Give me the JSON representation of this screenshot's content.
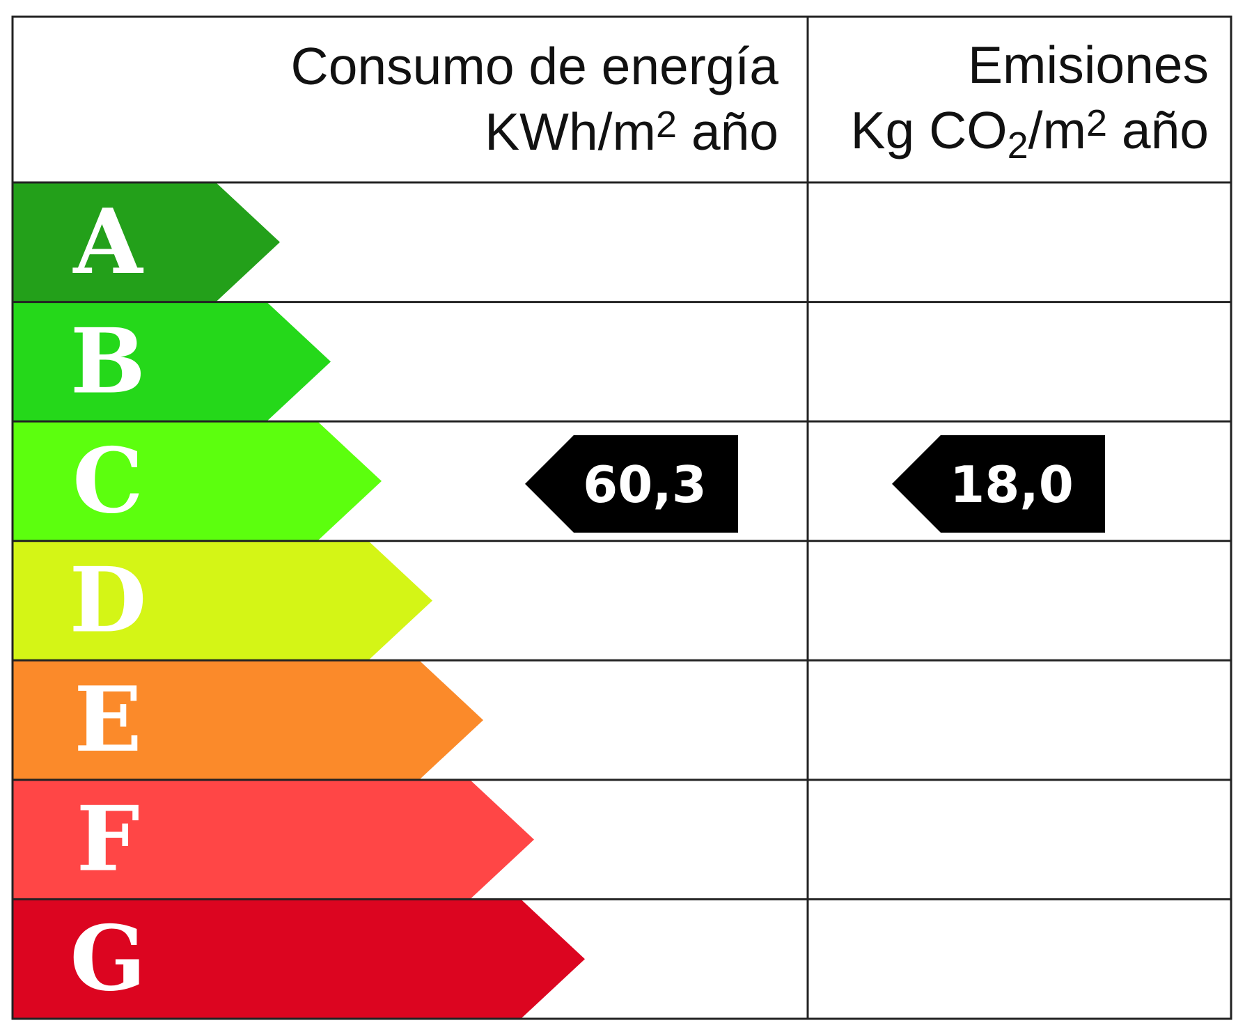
{
  "header": {
    "energy_title": "Consumo de energía",
    "energy_unit_main": "KWh/m",
    "energy_unit_sup": "2",
    "energy_unit_tail": " año",
    "emissions_title": "Emisiones",
    "emissions_unit_main": "Kg CO",
    "emissions_unit_sub": "2",
    "emissions_unit_mid": "/m",
    "emissions_unit_sup": "2",
    "emissions_unit_tail": " año"
  },
  "ratings": [
    {
      "letter": "A",
      "color": "#23a01a"
    },
    {
      "letter": "B",
      "color": "#25d81a"
    },
    {
      "letter": "C",
      "color": "#5cff0e"
    },
    {
      "letter": "D",
      "color": "#d4f516"
    },
    {
      "letter": "E",
      "color": "#fb8a2a"
    },
    {
      "letter": "F",
      "color": "#ff4646"
    },
    {
      "letter": "G",
      "color": "#dc0520"
    }
  ],
  "energy_indicator": {
    "rating": "C",
    "value": "60,3",
    "color": "#000000"
  },
  "emissions_indicator": {
    "rating": "C",
    "value": "18,0",
    "color": "#000000"
  }
}
